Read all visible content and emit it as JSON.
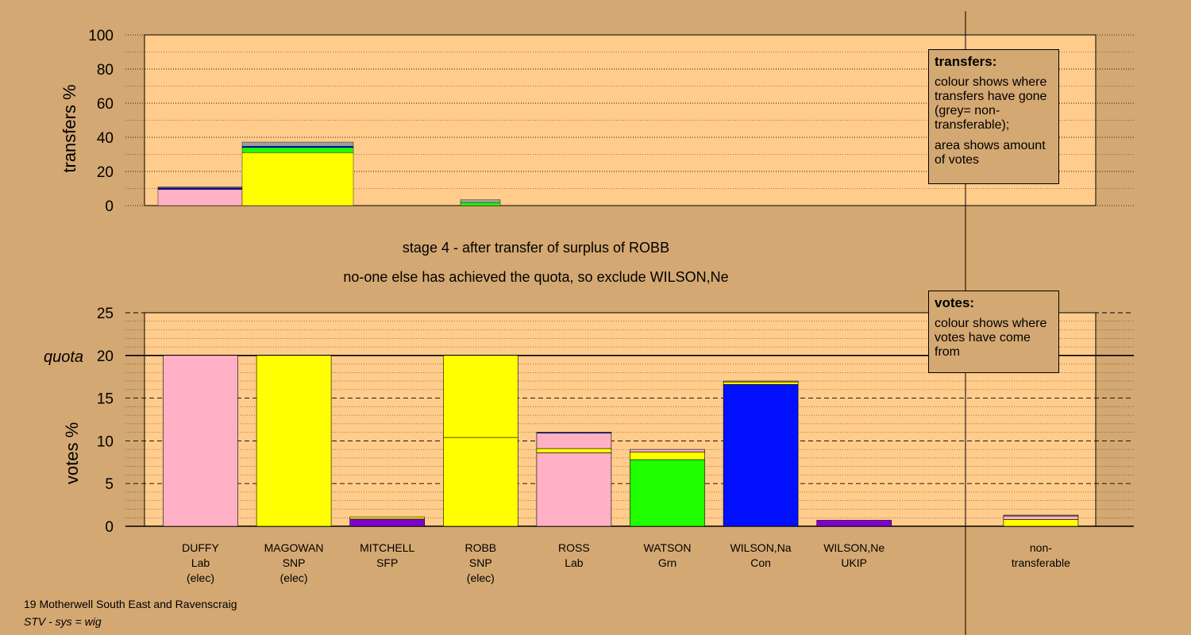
{
  "title": {
    "line1": "stage 4 - after transfer of surplus of ROBB",
    "line2": "no-one else has achieved the quota, so exclude WILSON,Ne"
  },
  "footer": {
    "line1": "19 Motherwell South East and Ravenscraig",
    "line2": "STV - sys = wig"
  },
  "legend_transfers": {
    "title": "transfers:",
    "p1": "colour shows where transfers have gone (grey= non-transferable);",
    "p2": "area shows amount of votes"
  },
  "legend_votes": {
    "title": "votes:",
    "p1": "colour shows where votes have come from"
  },
  "colors": {
    "background": "#d4a872",
    "plot_area": "#ffcc8c",
    "Lab": "#ffb0c4",
    "SNP": "#ffff00",
    "SFP": "#8000d0",
    "Grn": "#20ff00",
    "Con": "#0010ff",
    "UKIP": "#8000d0",
    "nontransferable": "#a0a0a0"
  },
  "chart_data": [
    {
      "type": "bar",
      "name": "transfers",
      "ylabel": "transfers %",
      "ylim": [
        0,
        100
      ],
      "yticks": [
        0,
        20,
        40,
        60,
        80,
        100
      ],
      "grid": true,
      "columns": [
        {
          "segments": [
            {
              "party": "Lab",
              "value": 9.4
            },
            {
              "party": "SFP",
              "value": 0.4
            },
            {
              "party": "Con",
              "value": 0.6
            },
            {
              "party": "nontransferable",
              "value": 0.6
            }
          ]
        },
        {
          "segments": [
            {
              "party": "SNP",
              "value": 31.0
            },
            {
              "party": "Grn",
              "value": 3.0
            },
            {
              "party": "Con",
              "value": 0.8
            },
            {
              "party": "nontransferable",
              "value": 2.4
            }
          ]
        },
        {
          "segments": [
            {
              "party": "Grn",
              "value": 1.8
            },
            {
              "party": "nontransferable",
              "value": 1.6
            }
          ]
        }
      ]
    },
    {
      "type": "bar",
      "name": "votes",
      "ylabel": "votes %",
      "ylim": [
        0,
        25
      ],
      "yticks": [
        0,
        5,
        10,
        15,
        20,
        25
      ],
      "quota": 20,
      "quota_label": "quota",
      "grid": true,
      "candidates": [
        {
          "name": "DUFFY",
          "party": "Lab",
          "status": "(elec)",
          "segments": [
            {
              "party": "Lab",
              "value": 20.0
            }
          ]
        },
        {
          "name": "MAGOWAN",
          "party": "SNP",
          "status": "(elec)",
          "segments": [
            {
              "party": "SNP",
              "value": 20.0
            }
          ]
        },
        {
          "name": "MITCHELL",
          "party": "SFP",
          "status": "",
          "segments": [
            {
              "party": "SFP",
              "value": 0.85
            },
            {
              "party": "SNP",
              "value": 0.25
            }
          ]
        },
        {
          "name": "ROBB",
          "party": "SNP",
          "status": "(elec)",
          "segments": [
            {
              "party": "SNP",
              "value": 10.4
            },
            {
              "party": "SNP",
              "value": 9.6
            }
          ]
        },
        {
          "name": "ROSS",
          "party": "Lab",
          "status": "",
          "segments": [
            {
              "party": "Lab",
              "value": 8.6
            },
            {
              "party": "SNP",
              "value": 0.5
            },
            {
              "party": "Lab",
              "value": 1.8
            },
            {
              "party": "Con",
              "value": 0.1
            }
          ]
        },
        {
          "name": "WATSON",
          "party": "Grn",
          "status": "",
          "segments": [
            {
              "party": "Grn",
              "value": 7.8
            },
            {
              "party": "SNP",
              "value": 0.9
            },
            {
              "party": "Lab",
              "value": 0.3
            }
          ]
        },
        {
          "name": "WILSON,Na",
          "party": "Con",
          "status": "",
          "segments": [
            {
              "party": "Con",
              "value": 16.6
            },
            {
              "party": "SNP",
              "value": 0.3
            },
            {
              "party": "Lab",
              "value": 0.1
            }
          ]
        },
        {
          "name": "WILSON,Ne",
          "party": "UKIP",
          "status": "",
          "segments": [
            {
              "party": "UKIP",
              "value": 0.7
            }
          ]
        },
        {
          "name": "",
          "party": "",
          "status": "",
          "segments": []
        },
        {
          "name": "non-",
          "party": "transferable",
          "status": "",
          "segments": [
            {
              "party": "SNP",
              "value": 0.8
            },
            {
              "party": "Lab",
              "value": 0.4
            },
            {
              "party": "nontransferable",
              "value": 0.1
            }
          ]
        }
      ]
    }
  ]
}
